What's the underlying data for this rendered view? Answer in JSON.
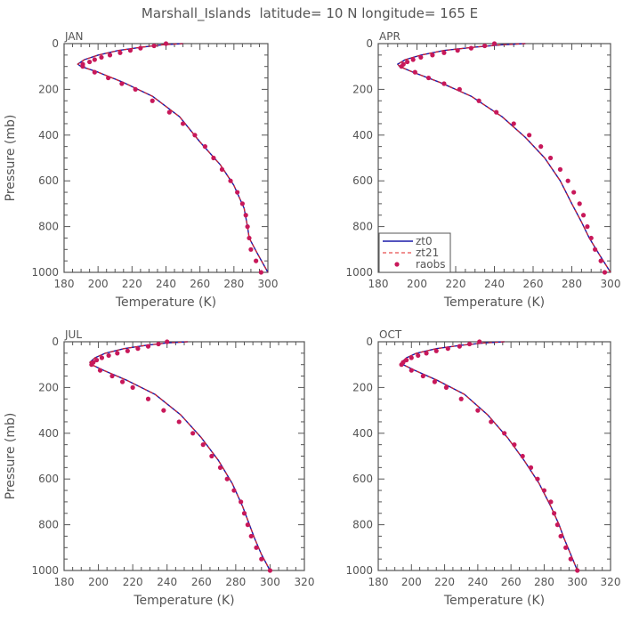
{
  "title": "Marshall_Islands  latitude= 10 N longitude= 165 E",
  "colors": {
    "zt0": "#1a1aa8",
    "zt21": "#e02020",
    "raobs": "#c8185a",
    "axis": "#555555"
  },
  "chart_data": [
    {
      "type": "line",
      "panel": "JAN",
      "xlabel": "Temperature (K)",
      "ylabel": "Pressure (mb)",
      "xlim": [
        180,
        300
      ],
      "ylim": [
        1000,
        0
      ],
      "xticks": [
        "180",
        "200",
        "220",
        "240",
        "260",
        "280",
        "300"
      ],
      "yticks": [
        "0",
        "200",
        "400",
        "600",
        "800",
        "1000"
      ],
      "series": [
        {
          "name": "zt0",
          "style": "solid",
          "x": [
            250,
            238,
            226,
            212,
            200,
            192,
            188,
            190,
            200,
            215,
            232,
            248,
            260,
            272,
            280,
            286,
            288,
            289,
            294,
            300
          ],
          "y": [
            0,
            5,
            15,
            30,
            50,
            70,
            90,
            100,
            125,
            170,
            230,
            320,
            430,
            530,
            620,
            720,
            800,
            850,
            920,
            1000
          ]
        },
        {
          "name": "zt21",
          "style": "dashed",
          "x": [
            250,
            238,
            226,
            212,
            200,
            192,
            188,
            190,
            200,
            215,
            232,
            248,
            260,
            272,
            280,
            286,
            288,
            289,
            294,
            300
          ],
          "y": [
            0,
            5,
            15,
            30,
            50,
            70,
            90,
            100,
            125,
            170,
            230,
            320,
            430,
            530,
            620,
            720,
            800,
            850,
            920,
            1000
          ]
        },
        {
          "name": "raobs",
          "style": "points",
          "x": [
            240,
            233,
            225,
            219,
            213,
            207,
            202,
            198,
            195,
            191,
            191,
            198,
            206,
            214,
            222,
            232,
            242,
            250,
            257,
            263,
            268,
            273,
            278,
            282,
            285,
            287,
            288,
            289,
            290,
            293,
            296
          ],
          "y": [
            0,
            10,
            20,
            30,
            40,
            50,
            60,
            70,
            80,
            90,
            100,
            125,
            150,
            175,
            200,
            250,
            300,
            350,
            400,
            450,
            500,
            550,
            600,
            650,
            700,
            750,
            800,
            850,
            900,
            950,
            1000
          ]
        }
      ]
    },
    {
      "type": "line",
      "panel": "APR",
      "xlabel": "Temperature (K)",
      "ylabel": "",
      "xlim": [
        180,
        300
      ],
      "ylim": [
        1000,
        0
      ],
      "xticks": [
        "180",
        "200",
        "220",
        "240",
        "260",
        "280",
        "300"
      ],
      "yticks": [
        "0",
        "200",
        "400",
        "600",
        "800",
        "1000"
      ],
      "legend": {
        "position": "bottom-left",
        "entries": [
          "zt0",
          "zt21",
          "raobs"
        ]
      },
      "series": [
        {
          "name": "zt0",
          "style": "solid",
          "x": [
            256,
            244,
            230,
            214,
            202,
            194,
            190,
            191,
            198,
            212,
            228,
            244,
            256,
            266,
            274,
            280,
            285,
            289,
            294,
            300
          ],
          "y": [
            0,
            5,
            15,
            30,
            50,
            70,
            90,
            100,
            125,
            170,
            230,
            320,
            410,
            500,
            600,
            700,
            780,
            850,
            920,
            1000
          ]
        },
        {
          "name": "zt21",
          "style": "dashed",
          "x": [
            256,
            244,
            230,
            214,
            202,
            194,
            190,
            191,
            198,
            212,
            228,
            244,
            256,
            266,
            274,
            280,
            285,
            289,
            294,
            300
          ],
          "y": [
            0,
            5,
            15,
            30,
            50,
            70,
            90,
            100,
            125,
            170,
            230,
            320,
            410,
            500,
            600,
            700,
            780,
            850,
            920,
            1000
          ]
        },
        {
          "name": "raobs",
          "style": "points",
          "x": [
            240,
            235,
            228,
            221,
            214,
            208,
            202,
            198,
            195,
            193,
            192,
            199,
            206,
            214,
            222,
            232,
            241,
            250,
            258,
            264,
            269,
            274,
            278,
            281,
            284,
            286,
            288,
            290,
            292,
            295,
            297
          ],
          "y": [
            0,
            10,
            20,
            30,
            40,
            50,
            60,
            70,
            80,
            90,
            100,
            125,
            150,
            175,
            200,
            250,
            300,
            350,
            400,
            450,
            500,
            550,
            600,
            650,
            700,
            750,
            800,
            850,
            900,
            950,
            1000
          ]
        }
      ]
    },
    {
      "type": "line",
      "panel": "JUL",
      "xlabel": "Temperature (K)",
      "ylabel": "Pressure (mb)",
      "xlim": [
        180,
        320
      ],
      "ylim": [
        1000,
        0
      ],
      "xticks": [
        "180",
        "200",
        "220",
        "240",
        "260",
        "280",
        "300",
        "320"
      ],
      "yticks": [
        "0",
        "200",
        "400",
        "600",
        "800",
        "1000"
      ],
      "series": [
        {
          "name": "zt0",
          "style": "solid",
          "x": [
            252,
            240,
            228,
            215,
            204,
            198,
            195,
            196,
            203,
            217,
            233,
            248,
            260,
            270,
            278,
            284,
            288,
            291,
            295,
            300
          ],
          "y": [
            0,
            5,
            15,
            30,
            50,
            70,
            90,
            100,
            125,
            170,
            230,
            320,
            420,
            520,
            620,
            720,
            800,
            860,
            930,
            1000
          ]
        },
        {
          "name": "zt21",
          "style": "dashed",
          "x": [
            252,
            240,
            228,
            215,
            204,
            198,
            195,
            196,
            203,
            217,
            233,
            248,
            260,
            270,
            278,
            284,
            288,
            291,
            295,
            300
          ],
          "y": [
            0,
            5,
            15,
            30,
            50,
            70,
            90,
            100,
            125,
            170,
            230,
            320,
            420,
            520,
            620,
            720,
            800,
            860,
            930,
            1000
          ]
        },
        {
          "name": "raobs",
          "style": "points",
          "x": [
            240,
            235,
            229,
            223,
            217,
            211,
            206,
            202,
            199,
            197,
            196,
            201,
            208,
            214,
            220,
            229,
            238,
            247,
            255,
            261,
            266,
            271,
            275,
            279,
            283,
            285,
            287,
            289,
            292,
            295,
            300
          ],
          "y": [
            0,
            10,
            20,
            30,
            40,
            50,
            60,
            70,
            80,
            90,
            100,
            125,
            150,
            175,
            200,
            250,
            300,
            350,
            400,
            450,
            500,
            550,
            600,
            650,
            700,
            750,
            800,
            850,
            900,
            950,
            1000
          ]
        }
      ]
    },
    {
      "type": "line",
      "panel": "OCT",
      "xlabel": "Temperature (K)",
      "ylabel": "",
      "xlim": [
        180,
        320
      ],
      "ylim": [
        1000,
        0
      ],
      "xticks": [
        "180",
        "200",
        "220",
        "240",
        "260",
        "280",
        "300",
        "320"
      ],
      "yticks": [
        "0",
        "200",
        "400",
        "600",
        "800",
        "1000"
      ],
      "series": [
        {
          "name": "zt0",
          "style": "solid",
          "x": [
            256,
            244,
            230,
            215,
            203,
            197,
            194,
            195,
            202,
            216,
            232,
            246,
            258,
            268,
            277,
            284,
            289,
            292,
            296,
            300
          ],
          "y": [
            0,
            5,
            15,
            30,
            50,
            70,
            90,
            100,
            125,
            170,
            230,
            320,
            420,
            520,
            620,
            720,
            800,
            860,
            930,
            1000
          ]
        },
        {
          "name": "zt21",
          "style": "dashed",
          "x": [
            256,
            244,
            230,
            215,
            203,
            197,
            194,
            195,
            202,
            216,
            232,
            246,
            258,
            268,
            277,
            284,
            289,
            292,
            296,
            300
          ],
          "y": [
            0,
            5,
            15,
            30,
            50,
            70,
            90,
            100,
            125,
            170,
            230,
            320,
            420,
            520,
            620,
            720,
            800,
            860,
            930,
            1000
          ]
        },
        {
          "name": "raobs",
          "style": "points",
          "x": [
            241,
            235,
            229,
            222,
            215,
            209,
            204,
            200,
            197,
            195,
            194,
            200,
            207,
            214,
            221,
            230,
            240,
            248,
            256,
            262,
            267,
            272,
            276,
            280,
            284,
            286,
            288,
            290,
            293,
            296,
            300
          ],
          "y": [
            0,
            10,
            20,
            30,
            40,
            50,
            60,
            70,
            80,
            90,
            100,
            125,
            150,
            175,
            200,
            250,
            300,
            350,
            400,
            450,
            500,
            550,
            600,
            650,
            700,
            750,
            800,
            850,
            900,
            950,
            1000
          ]
        }
      ]
    }
  ]
}
